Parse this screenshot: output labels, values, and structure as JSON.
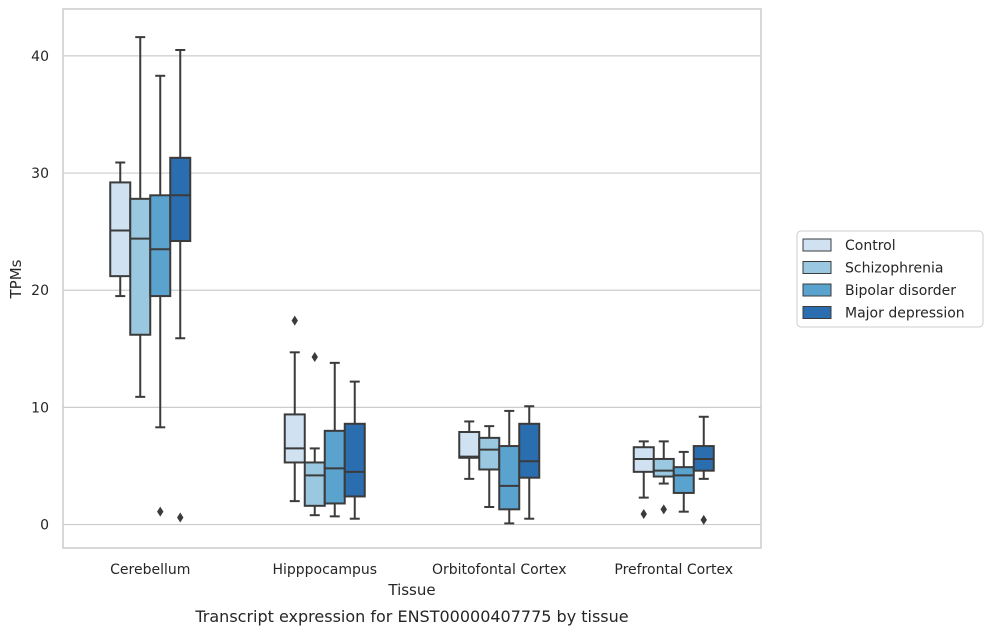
{
  "chart_data": {
    "type": "box",
    "title": "",
    "caption": "Transcript expression for ENST00000407775 by tissue",
    "xlabel": "Tissue",
    "ylabel": "TPMs",
    "ylim": [
      -2,
      44
    ],
    "yticks": [
      0,
      10,
      20,
      30,
      40
    ],
    "grid": "horizontal",
    "legend_position": "right",
    "categories": [
      "Cerebellum",
      "Hipppocampus",
      "Orbitofontal Cortex",
      "Prefrontal Cortex"
    ],
    "series": [
      {
        "name": "Control",
        "color": "#d0e1f2",
        "boxes": [
          {
            "whisker_low": 19.5,
            "q1": 21.2,
            "median": 25.1,
            "q3": 29.2,
            "whisker_high": 30.9,
            "outliers": []
          },
          {
            "whisker_low": 2.0,
            "q1": 5.3,
            "median": 6.5,
            "q3": 9.4,
            "whisker_high": 14.7,
            "outliers": [
              17.4
            ]
          },
          {
            "whisker_low": 3.9,
            "q1": 5.7,
            "median": 5.8,
            "q3": 7.9,
            "whisker_high": 8.8,
            "outliers": []
          },
          {
            "whisker_low": 2.3,
            "q1": 4.5,
            "median": 5.6,
            "q3": 6.6,
            "whisker_high": 7.1,
            "outliers": [
              0.9
            ]
          }
        ]
      },
      {
        "name": "Schizophrenia",
        "color": "#9ac8e0",
        "boxes": [
          {
            "whisker_low": 10.9,
            "q1": 16.2,
            "median": 24.4,
            "q3": 27.8,
            "whisker_high": 41.6,
            "outliers": []
          },
          {
            "whisker_low": 0.8,
            "q1": 1.6,
            "median": 4.2,
            "q3": 5.3,
            "whisker_high": 6.5,
            "outliers": [
              14.3
            ]
          },
          {
            "whisker_low": 1.5,
            "q1": 4.7,
            "median": 6.4,
            "q3": 7.4,
            "whisker_high": 8.4,
            "outliers": []
          },
          {
            "whisker_low": 3.5,
            "q1": 4.1,
            "median": 4.6,
            "q3": 5.6,
            "whisker_high": 7.1,
            "outliers": [
              1.3
            ]
          }
        ]
      },
      {
        "name": "Bipolar disorder",
        "color": "#5ba3cf",
        "boxes": [
          {
            "whisker_low": 8.3,
            "q1": 19.5,
            "median": 23.5,
            "q3": 28.1,
            "whisker_high": 38.3,
            "outliers": [
              1.1
            ]
          },
          {
            "whisker_low": 0.7,
            "q1": 1.8,
            "median": 4.8,
            "q3": 8.0,
            "whisker_high": 13.8,
            "outliers": []
          },
          {
            "whisker_low": 0.1,
            "q1": 1.3,
            "median": 3.3,
            "q3": 6.7,
            "whisker_high": 9.7,
            "outliers": []
          },
          {
            "whisker_low": 1.1,
            "q1": 2.7,
            "median": 4.2,
            "q3": 4.9,
            "whisker_high": 6.2,
            "outliers": []
          }
        ]
      },
      {
        "name": "Major depression",
        "color": "#2a6eb0",
        "boxes": [
          {
            "whisker_low": 15.9,
            "q1": 24.2,
            "median": 28.1,
            "q3": 31.3,
            "whisker_high": 40.5,
            "outliers": [
              0.6
            ]
          },
          {
            "whisker_low": 0.5,
            "q1": 2.4,
            "median": 4.5,
            "q3": 8.6,
            "whisker_high": 12.2,
            "outliers": []
          },
          {
            "whisker_low": 0.5,
            "q1": 4.0,
            "median": 5.4,
            "q3": 8.6,
            "whisker_high": 10.1,
            "outliers": []
          },
          {
            "whisker_low": 3.9,
            "q1": 4.6,
            "median": 5.6,
            "q3": 6.7,
            "whisker_high": 9.2,
            "outliers": [
              0.4
            ]
          }
        ]
      }
    ]
  }
}
